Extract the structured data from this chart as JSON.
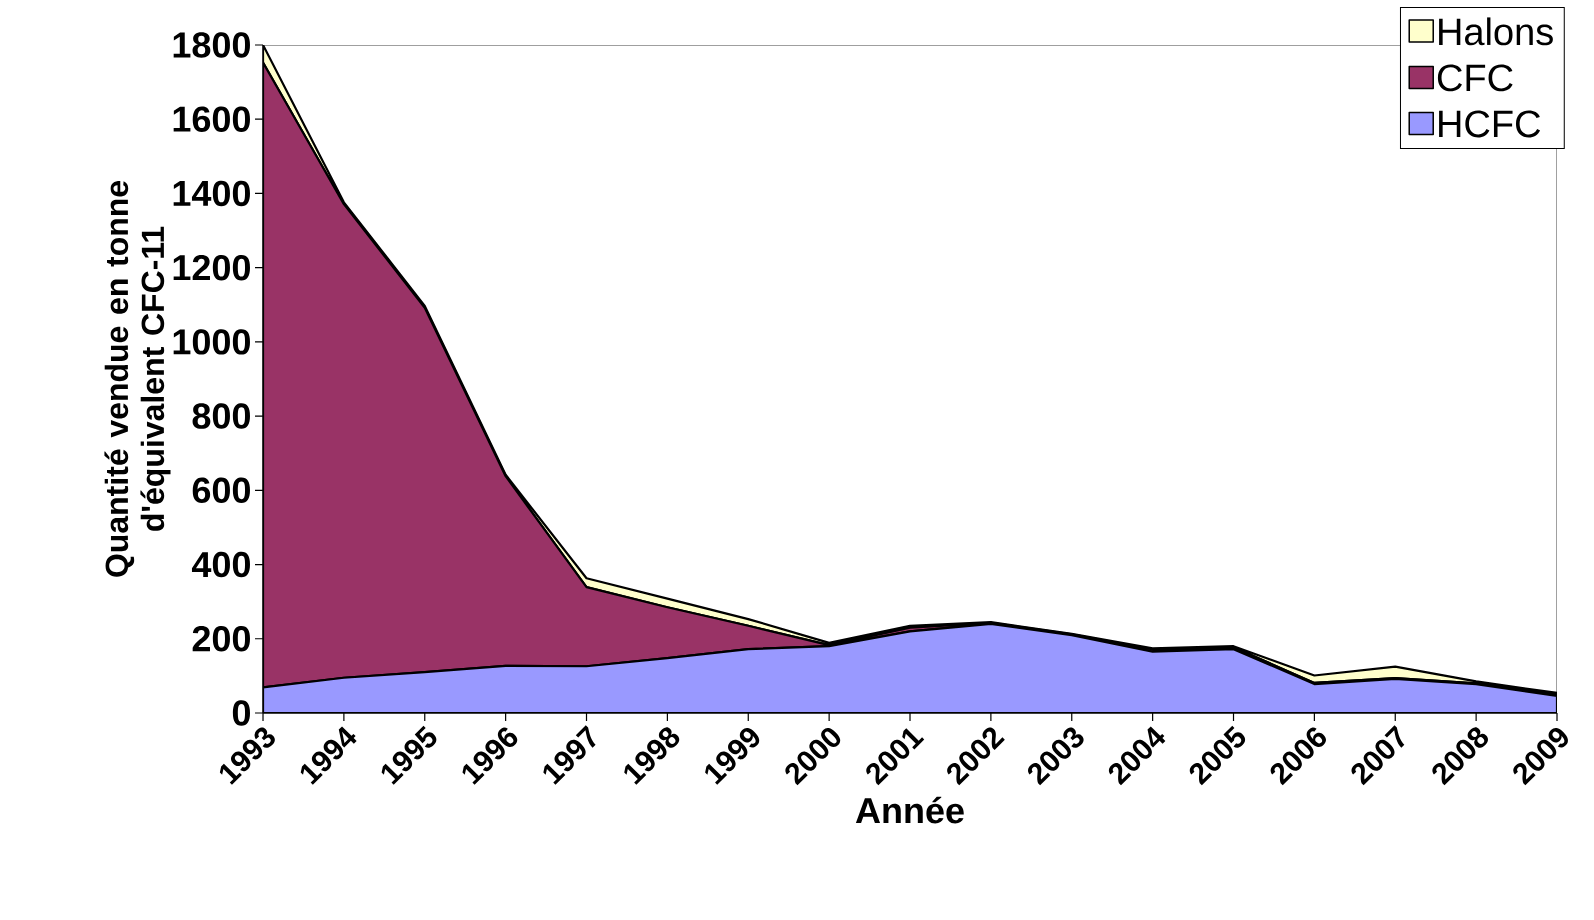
{
  "chart_data": {
    "type": "area",
    "stacked": true,
    "xlabel": "Année",
    "ylabel": "Quantité vendue en tonne d'équivalent CFC-11",
    "categories": [
      "1993",
      "1994",
      "1995",
      "1996",
      "1997",
      "1998",
      "1999",
      "2000",
      "2001",
      "2002",
      "2003",
      "2004",
      "2005",
      "2006",
      "2007",
      "2008",
      "2009"
    ],
    "series": [
      {
        "name": "HCFC",
        "color": "#9999ff",
        "values": [
          69,
          95,
          110,
          127,
          126,
          148,
          172,
          180,
          220,
          240,
          210,
          165,
          172,
          78,
          92,
          78,
          46
        ]
      },
      {
        "name": "CFC",
        "color": "#993366",
        "values": [
          1684,
          1276,
          982,
          511,
          213,
          137,
          63,
          3,
          10,
          3,
          2,
          6,
          5,
          3,
          2,
          2,
          4
        ]
      },
      {
        "name": "Halons",
        "color": "#ffffcc",
        "values": [
          47,
          5,
          5,
          4,
          24,
          23,
          18,
          6,
          5,
          2,
          1,
          3,
          3,
          20,
          31,
          5,
          4
        ]
      }
    ],
    "ylim": [
      0,
      1800
    ],
    "yticks": [
      0,
      200,
      400,
      600,
      800,
      1000,
      1200,
      1400,
      1600,
      1800
    ],
    "legend": "top right"
  }
}
